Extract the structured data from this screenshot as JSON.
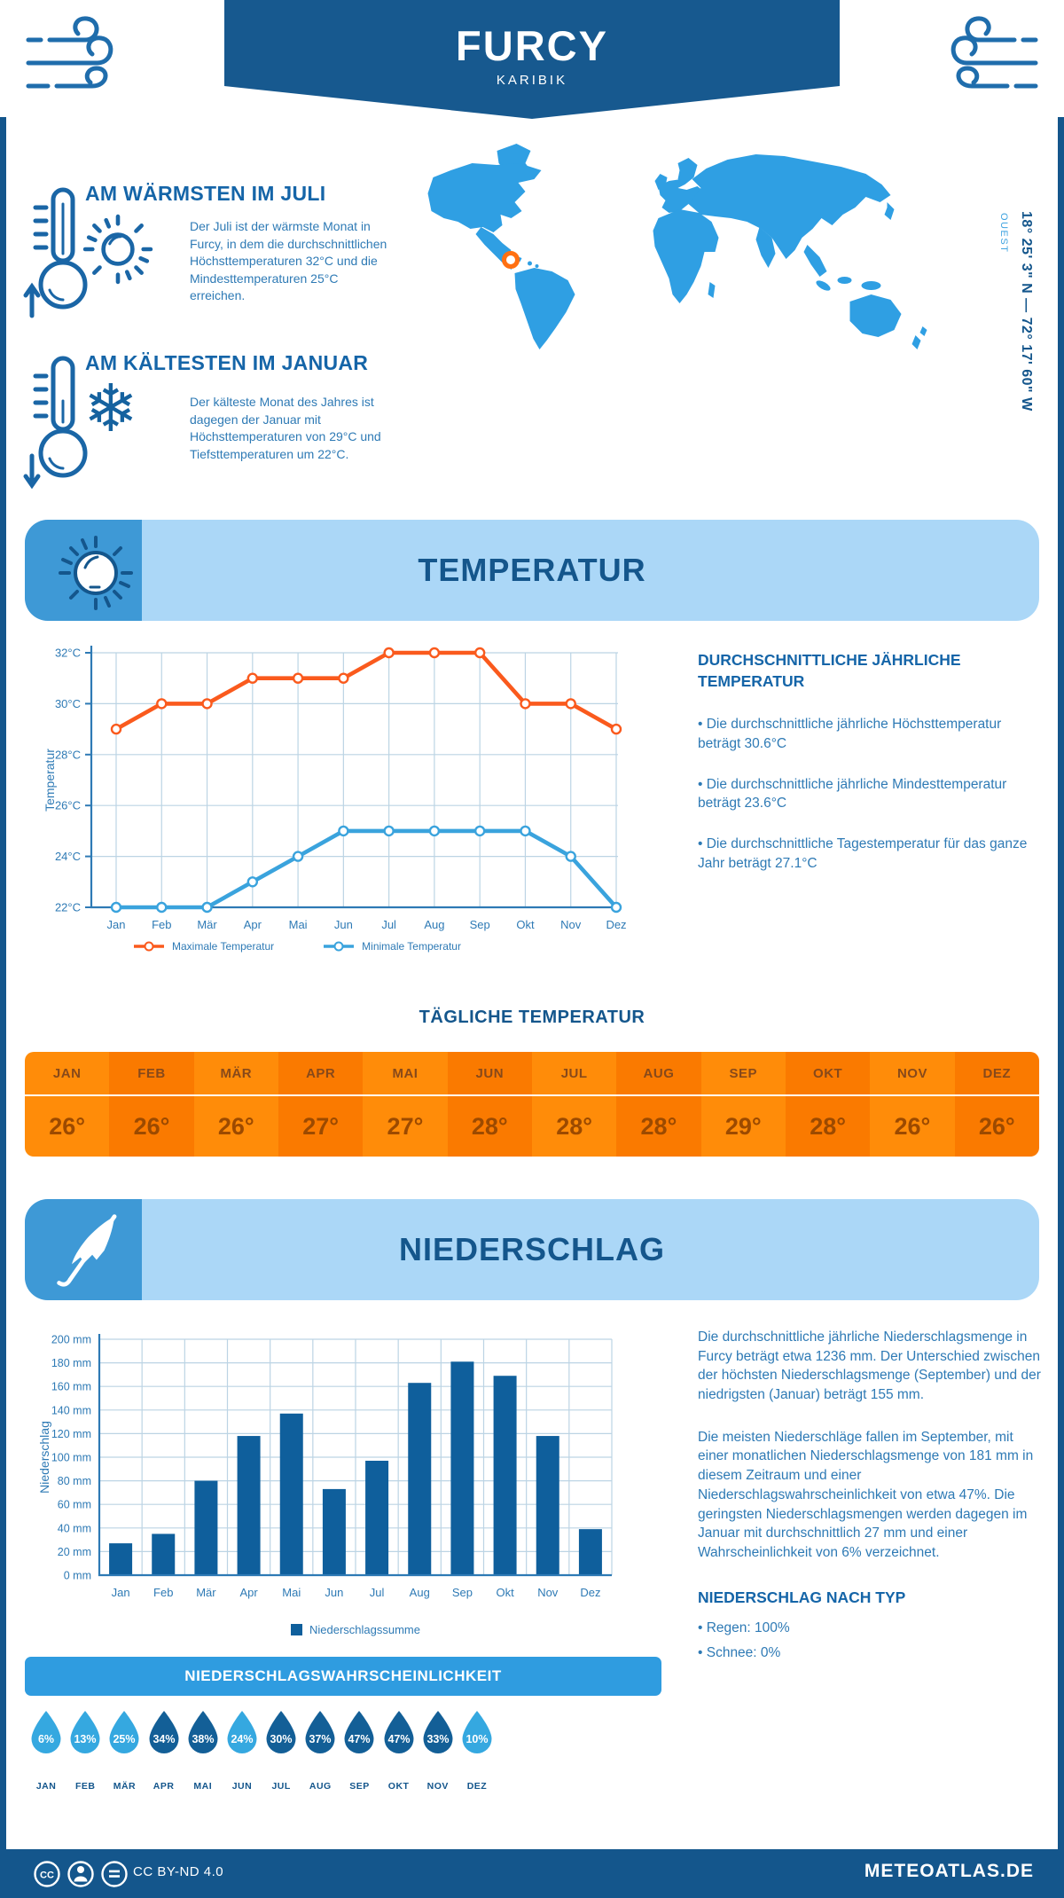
{
  "header": {
    "title": "FURCY",
    "subtitle": "KARIBIK"
  },
  "highlights": {
    "warm": {
      "title": "AM WÄRMSTEN IM JULI",
      "text": "Der Juli ist der wärmste Monat in Furcy, in dem die durchschnittlichen Höchsttemperaturen 32°C und die Mindesttemperaturen 25°C erreichen."
    },
    "cold": {
      "title": "AM KÄLTESTEN IM JANUAR",
      "text": "Der kälteste Monat des Jahres ist dagegen der Januar mit Höchsttemperaturen von 29°C und Tiefsttemperaturen um 22°C."
    }
  },
  "map": {
    "coordinates": "18° 25' 3\" N — 72° 17' 60\" W",
    "direction": "OUEST"
  },
  "temperature": {
    "banner": "TEMPERATUR",
    "annual": {
      "heading": "DURCHSCHNITTLICHE JÄHRLICHE TEMPERATUR",
      "bullets": [
        "• Die durchschnittliche jährliche Höchsttemperatur beträgt 30.6°C",
        "• Die durchschnittliche jährliche Mindesttemperatur beträgt 23.6°C",
        "• Die durchschnittliche Tagestemperatur für das ganze Jahr beträgt 27.1°C"
      ]
    },
    "daily_title": "TÄGLICHE TEMPERATUR"
  },
  "precipitation": {
    "banner": "NIEDERSCHLAG",
    "text1": "Die durchschnittliche jährliche Niederschlagsmenge in Furcy beträgt etwa 1236 mm. Der Unterschied zwischen der höchsten Niederschlagsmenge (September) und der niedrigsten (Januar) beträgt 155 mm.",
    "text2": "Die meisten Niederschläge fallen im September, mit einer monatlichen Niederschlagsmenge von 181 mm in diesem Zeitraum und einer Niederschlagswahrscheinlichkeit von etwa 47%. Die geringsten Niederschlagsmengen werden dagegen im Januar mit durchschnittlich 27 mm und einer Wahrscheinlichkeit von 6% verzeichnet.",
    "by_type_heading": "NIEDERSCHLAG NACH TYP",
    "by_type_bullets": [
      "• Regen: 100%",
      "• Schnee: 0%"
    ],
    "probability_title": "NIEDERSCHLAGSWAHRSCHEINLICHKEIT"
  },
  "footer": {
    "license": "CC BY-ND 4.0",
    "site": "METEOATLAS.DE"
  },
  "colors": {
    "dark_blue": "#14568c",
    "heading_blue": "#1565a8",
    "body_blue": "#2e7ab5",
    "light_banner": "#abd7f7",
    "chip_blue": "#3e99d6",
    "map_blue": "#2f9fe3",
    "orange_line": "#fa5a1d",
    "blue_line": "#3aa3dd",
    "bar_blue": "#0f5f9c",
    "band_blue": "#2f9ce0",
    "drop_light": "#35a8e0",
    "drop_dark": "#135f97",
    "marker_orange": "#ff7012"
  },
  "chart_data": [
    {
      "type": "line",
      "title": "TEMPERATUR",
      "categories": [
        "Jan",
        "Feb",
        "Mär",
        "Apr",
        "Mai",
        "Jun",
        "Jul",
        "Aug",
        "Sep",
        "Okt",
        "Nov",
        "Dez"
      ],
      "series": [
        {
          "name": "Maximale Temperatur",
          "color": "#fa5a1d",
          "values": [
            29,
            30,
            30,
            31,
            31,
            31,
            32,
            32,
            32,
            30,
            30,
            29
          ]
        },
        {
          "name": "Minimale Temperatur",
          "color": "#3aa3dd",
          "values": [
            22,
            22,
            22,
            23,
            24,
            25,
            25,
            25,
            25,
            25,
            24,
            22
          ]
        }
      ],
      "ylabel": "Temperatur",
      "ylim": [
        22,
        32
      ],
      "ytick_step": 2,
      "ytick_suffix": "°C",
      "grid": true,
      "legend_position": "bottom"
    },
    {
      "type": "bar",
      "title": "NIEDERSCHLAG",
      "categories": [
        "Jan",
        "Feb",
        "Mär",
        "Apr",
        "Mai",
        "Jun",
        "Jul",
        "Aug",
        "Sep",
        "Okt",
        "Nov",
        "Dez"
      ],
      "values": [
        27,
        35,
        80,
        118,
        137,
        73,
        97,
        163,
        181,
        169,
        118,
        39
      ],
      "legend": "Niederschlagssumme",
      "ylabel": "Niederschlag",
      "ylim": [
        0,
        200
      ],
      "ytick_step": 20,
      "ytick_suffix": " mm",
      "grid": true,
      "legend_position": "bottom"
    },
    {
      "type": "table",
      "title": "TÄGLICHE TEMPERATUR",
      "categories": [
        "JAN",
        "FEB",
        "MÄR",
        "APR",
        "MAI",
        "JUN",
        "JUL",
        "AUG",
        "SEP",
        "OKT",
        "NOV",
        "DEZ"
      ],
      "values": [
        26,
        26,
        26,
        27,
        27,
        28,
        28,
        28,
        29,
        28,
        26,
        26
      ],
      "value_suffix": "°"
    },
    {
      "type": "table",
      "title": "NIEDERSCHLAGSWAHRSCHEINLICHKEIT",
      "categories": [
        "JAN",
        "FEB",
        "MÄR",
        "APR",
        "MAI",
        "JUN",
        "JUL",
        "AUG",
        "SEP",
        "OKT",
        "NOV",
        "DEZ"
      ],
      "values": [
        6,
        13,
        25,
        34,
        38,
        24,
        30,
        37,
        47,
        47,
        33,
        10
      ],
      "value_suffix": "%",
      "emphasis": [
        false,
        false,
        false,
        true,
        true,
        false,
        true,
        true,
        true,
        true,
        true,
        false
      ]
    }
  ]
}
